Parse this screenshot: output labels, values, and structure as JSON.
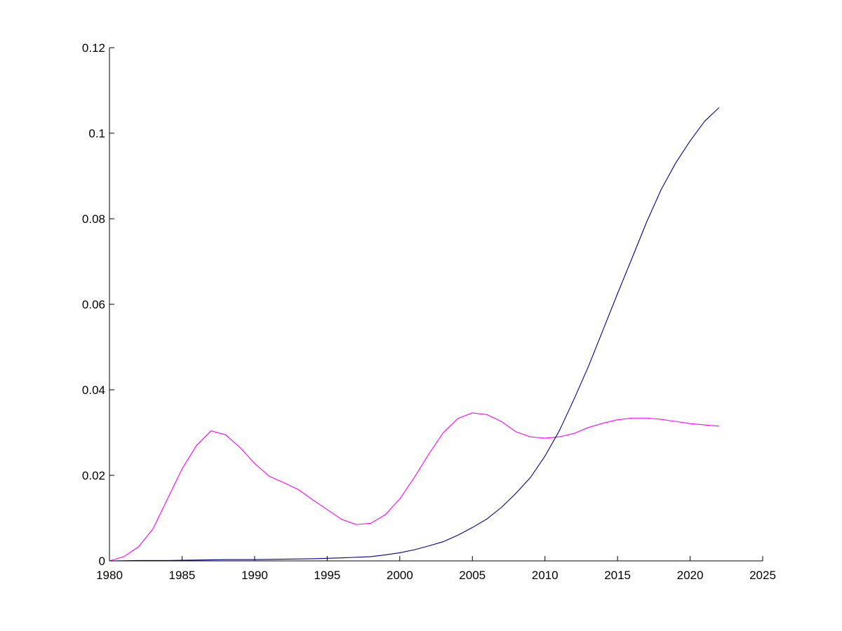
{
  "chart_data": {
    "type": "line",
    "title": "",
    "xlabel": "",
    "ylabel": "",
    "xlim": [
      1980,
      2025
    ],
    "ylim": [
      0,
      0.12
    ],
    "grid": false,
    "xticks": [
      1980,
      1985,
      1990,
      1995,
      2000,
      2005,
      2010,
      2015,
      2020,
      2025
    ],
    "xtick_labels": [
      "1980",
      "1985",
      "1990",
      "1995",
      "2000",
      "2005",
      "2010",
      "2015",
      "2020",
      "2025"
    ],
    "yticks": [
      0,
      0.02,
      0.04,
      0.06,
      0.08,
      0.1,
      0.12
    ],
    "ytick_labels": [
      "0",
      "0.02",
      "0.04",
      "0.06",
      "0.08",
      "0.1",
      "0.12"
    ],
    "series": [
      {
        "color": "#ff00ff",
        "x": [
          1980,
          1981,
          1982,
          1983,
          1984,
          1985,
          1986,
          1987,
          1988,
          1989,
          1990,
          1991,
          1992,
          1993,
          1994,
          1995,
          1996,
          1997,
          1998,
          1999,
          2000,
          2001,
          2002,
          2003,
          2004,
          2005,
          2006,
          2007,
          2008,
          2009,
          2010,
          2011,
          2012,
          2013,
          2014,
          2015,
          2016,
          2017,
          2018,
          2019,
          2020,
          2021,
          2022
        ],
        "values": [
          0.0,
          0.001,
          0.0033,
          0.0075,
          0.0145,
          0.0215,
          0.027,
          0.0304,
          0.0295,
          0.0265,
          0.0228,
          0.0198,
          0.0183,
          0.0167,
          0.0143,
          0.012,
          0.0097,
          0.0085,
          0.0088,
          0.0108,
          0.0145,
          0.0195,
          0.025,
          0.03,
          0.0333,
          0.0346,
          0.0342,
          0.0326,
          0.0302,
          0.029,
          0.0287,
          0.029,
          0.0298,
          0.0312,
          0.0322,
          0.033,
          0.0334,
          0.0334,
          0.0331,
          0.0326,
          0.0321,
          0.0318,
          0.0315
        ]
      },
      {
        "color": "#00008b",
        "x": [
          1980,
          1982,
          1984,
          1986,
          1988,
          1990,
          1992,
          1994,
          1996,
          1998,
          1999,
          2000,
          2001,
          2002,
          2003,
          2004,
          2005,
          2006,
          2007,
          2008,
          2009,
          2010,
          2011,
          2012,
          2013,
          2014,
          2015,
          2016,
          2017,
          2018,
          2019,
          2020,
          2021,
          2022
        ],
        "values": [
          0.0,
          0.0001,
          0.0001,
          0.0002,
          0.0003,
          0.0003,
          0.0004,
          0.0005,
          0.0007,
          0.001,
          0.0014,
          0.0019,
          0.0026,
          0.0035,
          0.0045,
          0.006,
          0.0078,
          0.0098,
          0.0125,
          0.0158,
          0.0195,
          0.0245,
          0.0305,
          0.0378,
          0.0455,
          0.054,
          0.0625,
          0.0708,
          0.0792,
          0.0868,
          0.093,
          0.0982,
          0.1028,
          0.106
        ]
      }
    ]
  }
}
